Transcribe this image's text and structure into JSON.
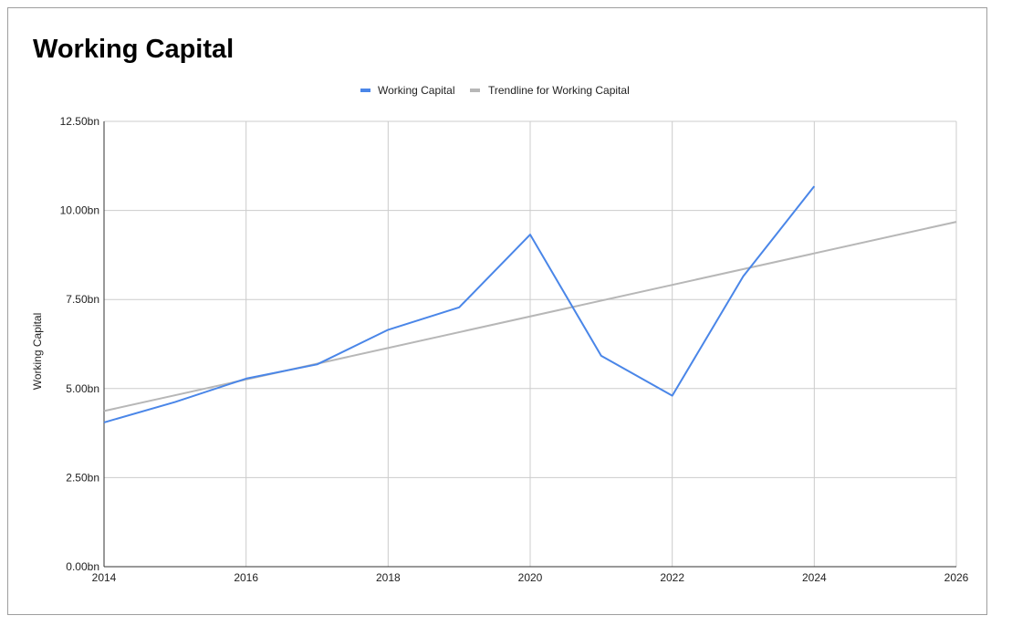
{
  "chart_data": {
    "type": "line",
    "title": "Working Capital",
    "xlabel": "",
    "ylabel": "Working Capital",
    "xlim": [
      2014,
      2026
    ],
    "ylim": [
      0,
      12.5
    ],
    "x_ticks": [
      {
        "value": 2014,
        "label": "2014"
      },
      {
        "value": 2016,
        "label": "2016"
      },
      {
        "value": 2018,
        "label": "2018"
      },
      {
        "value": 2020,
        "label": "2020"
      },
      {
        "value": 2022,
        "label": "2022"
      },
      {
        "value": 2024,
        "label": "2024"
      },
      {
        "value": 2026,
        "label": "2026"
      }
    ],
    "y_ticks": [
      {
        "value": 0,
        "label": "0.00bn"
      },
      {
        "value": 2.5,
        "label": "2.50bn"
      },
      {
        "value": 5,
        "label": "5.00bn"
      },
      {
        "value": 7.5,
        "label": "7.50bn"
      },
      {
        "value": 10,
        "label": "10.00bn"
      },
      {
        "value": 12.5,
        "label": "12.50bn"
      }
    ],
    "grid": true,
    "legend": "top",
    "series": [
      {
        "name": "Working Capital",
        "color": "#4a86e8",
        "points": [
          {
            "x": 2014,
            "y": 4.05
          },
          {
            "x": 2015,
            "y": 4.62
          },
          {
            "x": 2016,
            "y": 5.28
          },
          {
            "x": 2017,
            "y": 5.68
          },
          {
            "x": 2018,
            "y": 6.65
          },
          {
            "x": 2019,
            "y": 7.28
          },
          {
            "x": 2020,
            "y": 9.32
          },
          {
            "x": 2021,
            "y": 5.92
          },
          {
            "x": 2022,
            "y": 4.8
          },
          {
            "x": 2023,
            "y": 8.15
          },
          {
            "x": 2024,
            "y": 10.68
          }
        ]
      },
      {
        "name": "Trendline for Working Capital",
        "color": "#b7b7b7",
        "points": [
          {
            "x": 2014,
            "y": 4.37
          },
          {
            "x": 2026,
            "y": 9.68
          }
        ]
      }
    ]
  }
}
